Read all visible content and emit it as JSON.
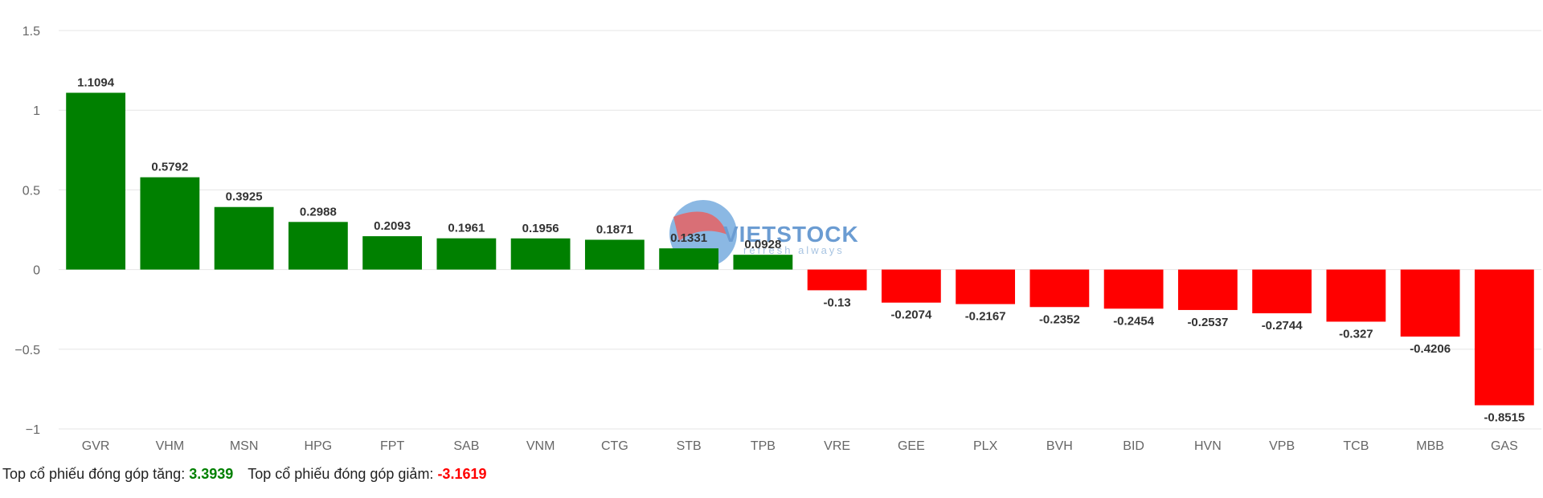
{
  "colors": {
    "positive": "#008000",
    "negative": "#ff0000",
    "grid": "#e6e6e6",
    "up_total": "#008000",
    "down_total": "#ff0000"
  },
  "watermark": {
    "brand": "VIETSTOCK",
    "tagline": "refresh always"
  },
  "footer": {
    "up_label": "Top cổ phiếu đóng góp tăng: ",
    "up_value": "3.3939",
    "down_label": "Top cổ phiếu đóng góp giảm: ",
    "down_value": "-3.1619"
  },
  "chart_data": {
    "type": "bar",
    "title": "",
    "xlabel": "",
    "ylabel": "",
    "ylim": [
      -1,
      1.5
    ],
    "yticks": [
      1.5,
      1,
      0.5,
      0,
      -0.5,
      -1
    ],
    "ytick_labels": [
      "1.5",
      "1",
      "0.5",
      "0",
      "−0.5",
      "−1"
    ],
    "grid": true,
    "categories": [
      "GVR",
      "VHM",
      "MSN",
      "HPG",
      "FPT",
      "SAB",
      "VNM",
      "CTG",
      "STB",
      "TPB",
      "VRE",
      "GEE",
      "PLX",
      "BVH",
      "BID",
      "HVN",
      "VPB",
      "TCB",
      "MBB",
      "GAS"
    ],
    "values": [
      1.1094,
      0.5792,
      0.3925,
      0.2988,
      0.2093,
      0.1961,
      0.1956,
      0.1871,
      0.1331,
      0.0928,
      -0.13,
      -0.2074,
      -0.2167,
      -0.2352,
      -0.2454,
      -0.2537,
      -0.2744,
      -0.327,
      -0.4206,
      -0.8515
    ],
    "data_labels": [
      "1.1094",
      "0.5792",
      "0.3925",
      "0.2988",
      "0.2093",
      "0.1961",
      "0.1956",
      "0.1871",
      "0.1331",
      "0.0928",
      "-0.13",
      "-0.2074",
      "-0.2167",
      "-0.2352",
      "-0.2454",
      "-0.2537",
      "-0.2744",
      "-0.327",
      "-0.4206",
      "-0.8515"
    ]
  }
}
